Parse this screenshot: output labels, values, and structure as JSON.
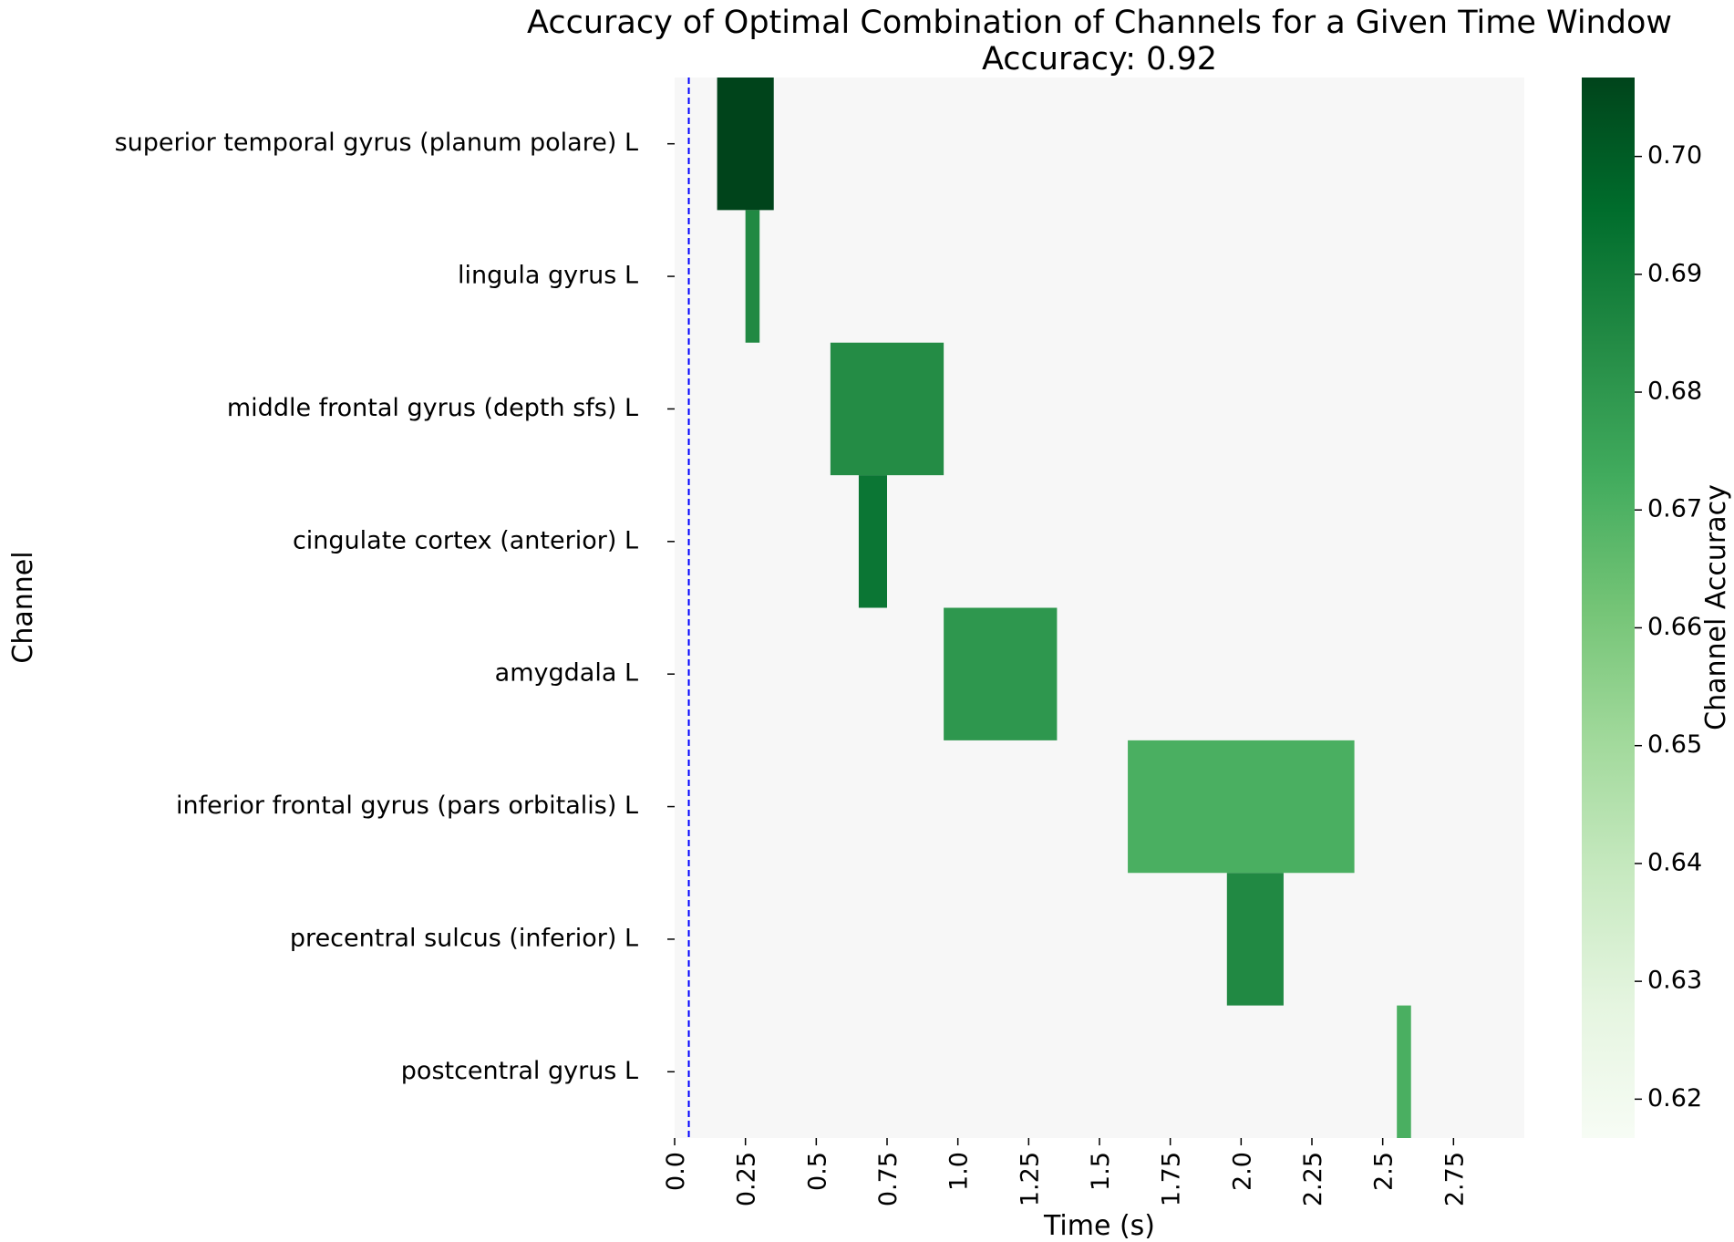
{
  "chart_data": {
    "type": "heatmap",
    "title": "Accuracy of Optimal Combination of Channels for a Given Time Window",
    "subtitle": "Accuracy: 0.92",
    "xlabel": "Time (s)",
    "ylabel": "Channel",
    "xlim": [
      0.0,
      3.0
    ],
    "xticks": [
      0.0,
      0.25,
      0.5,
      0.75,
      1.0,
      1.25,
      1.5,
      1.75,
      2.0,
      2.25,
      2.5,
      2.75
    ],
    "xtick_labels": [
      "0.0",
      "0.25",
      "0.5",
      "0.75",
      "1.0",
      "1.25",
      "1.5",
      "1.75",
      "2.0",
      "2.25",
      "2.5",
      "2.75"
    ],
    "channels": [
      "superior temporal gyrus (planum polare) L",
      "lingula gyrus L",
      "middle frontal gyrus (depth sfs) L",
      "cingulate cortex (anterior) L",
      "amygdala L",
      "inferior frontal gyrus (pars orbitalis) L",
      "precentral sulcus (inferior) L",
      "postcentral gyrus L"
    ],
    "cells": [
      {
        "channel": "superior temporal gyrus (planum polare) L",
        "start": 0.15,
        "end": 0.35,
        "value": 0.707
      },
      {
        "channel": "lingula gyrus L",
        "start": 0.25,
        "end": 0.3,
        "value": 0.685
      },
      {
        "channel": "middle frontal gyrus (depth sfs) L",
        "start": 0.55,
        "end": 0.95,
        "value": 0.684
      },
      {
        "channel": "cingulate cortex (anterior) L",
        "start": 0.65,
        "end": 0.75,
        "value": 0.692
      },
      {
        "channel": "amygdala L",
        "start": 0.95,
        "end": 1.35,
        "value": 0.68
      },
      {
        "channel": "inferior frontal gyrus (pars orbitalis) L",
        "start": 1.6,
        "end": 2.4,
        "value": 0.671
      },
      {
        "channel": "precentral sulcus (inferior) L",
        "start": 1.95,
        "end": 2.15,
        "value": 0.685
      },
      {
        "channel": "postcentral gyrus L",
        "start": 2.55,
        "end": 2.6,
        "value": 0.671
      }
    ],
    "vline": {
      "x": 0.05,
      "color": "#0000ff",
      "style": "dashed"
    },
    "background_color": "#f7f7f7",
    "colorbar": {
      "label": "Channel Accuracy",
      "min": 0.6167,
      "max": 0.7067,
      "ticks": [
        0.62,
        0.63,
        0.64,
        0.65,
        0.66,
        0.67,
        0.68,
        0.69,
        0.7
      ],
      "tick_labels": [
        "0.62",
        "0.63",
        "0.64",
        "0.65",
        "0.66",
        "0.67",
        "0.68",
        "0.69",
        "0.70"
      ],
      "colormap": "Greens",
      "stops": [
        "#f7fcf5",
        "#e5f5e0",
        "#c7e9c0",
        "#a1d99b",
        "#74c476",
        "#41ab5d",
        "#238b45",
        "#006d2c",
        "#00441b"
      ]
    },
    "grid": false,
    "legend": "none"
  }
}
